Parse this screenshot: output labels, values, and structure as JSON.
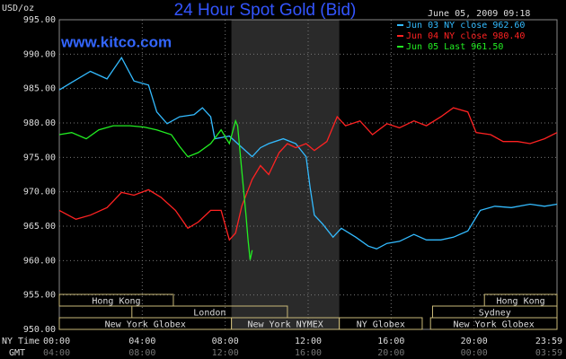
{
  "chart_data": {
    "type": "line",
    "title": "24 Hour Spot Gold (Bid)",
    "y_label": "USD/oz",
    "timestamp": "June 05, 2009 09:18",
    "watermark": "www.kitco.com",
    "x_row_label": "NY Time",
    "gmt_row_label": "GMT",
    "xlim": [
      0,
      24
    ],
    "xticks": [
      {
        "value": 0,
        "label": "00:00"
      },
      {
        "value": 4,
        "label": "04:00"
      },
      {
        "value": 8,
        "label": "08:00"
      },
      {
        "value": 12,
        "label": "12:00"
      },
      {
        "value": 16,
        "label": "16:00"
      },
      {
        "value": 20,
        "label": "20:00"
      },
      {
        "value": 24,
        "label": "23:59"
      }
    ],
    "gmt_labels": [
      "04:00",
      "08:00",
      "12:00",
      "16:00",
      "20:00",
      "00:00",
      "03:59"
    ],
    "ylim": [
      950,
      995
    ],
    "yticks": [
      {
        "value": 950,
        "label": "950.00"
      },
      {
        "value": 955,
        "label": "955.00"
      },
      {
        "value": 960,
        "label": "960.00"
      },
      {
        "value": 965,
        "label": "965.00"
      },
      {
        "value": 970,
        "label": "970.00"
      },
      {
        "value": 975,
        "label": "975.00"
      },
      {
        "value": 980,
        "label": "980.00"
      },
      {
        "value": 985,
        "label": "985.00"
      },
      {
        "value": 990,
        "label": "990.00"
      },
      {
        "value": 995,
        "label": "995.00"
      }
    ],
    "grid": true,
    "series": [
      {
        "name": "Jun 03 NY close 962.60",
        "color": "#33bbff",
        "x": [
          0,
          0.6,
          1.5,
          2.3,
          3.0,
          3.6,
          4.3,
          4.7,
          5.2,
          5.8,
          6.5,
          6.9,
          7.3,
          7.5,
          8.2,
          8.6,
          9.3,
          9.7,
          10.1,
          10.8,
          11.4,
          11.9,
          12.1,
          12.3,
          12.7,
          13.2,
          13.6,
          14.3,
          14.9,
          15.3,
          15.8,
          16.4,
          17.1,
          17.7,
          18.4,
          19.0,
          19.7,
          20.3,
          21.0,
          21.8,
          22.7,
          23.4,
          24.0
        ],
        "values": [
          984.8,
          985.9,
          987.5,
          986.4,
          989.5,
          986.1,
          985.5,
          981.6,
          979.9,
          980.9,
          981.2,
          982.2,
          980.9,
          977.7,
          978.1,
          977.0,
          975.1,
          976.4,
          977.0,
          977.7,
          977.0,
          975.1,
          970.5,
          966.6,
          965.3,
          963.4,
          964.7,
          963.4,
          962.1,
          961.7,
          962.5,
          962.8,
          963.8,
          963.0,
          963.0,
          963.4,
          964.3,
          967.3,
          967.9,
          967.7,
          968.2,
          967.9,
          968.2
        ]
      },
      {
        "name": "Jun 04 NY close 980.40",
        "color": "#ff2222",
        "x": [
          0,
          0.8,
          1.5,
          2.3,
          3.0,
          3.6,
          4.3,
          4.9,
          5.6,
          6.2,
          6.7,
          7.3,
          7.8,
          8.2,
          8.5,
          8.8,
          9.3,
          9.7,
          10.1,
          10.6,
          11.0,
          11.4,
          11.9,
          12.3,
          12.9,
          13.4,
          13.8,
          14.5,
          15.1,
          15.8,
          16.4,
          17.1,
          17.7,
          18.4,
          19.0,
          19.7,
          20.1,
          20.8,
          21.4,
          22.1,
          22.7,
          23.4,
          24.0
        ],
        "values": [
          967.3,
          966.0,
          966.6,
          967.7,
          969.9,
          969.5,
          970.3,
          969.2,
          967.3,
          964.7,
          965.6,
          967.3,
          967.3,
          963.0,
          964.0,
          967.9,
          971.8,
          973.8,
          972.5,
          975.7,
          977.0,
          976.4,
          977.0,
          976.0,
          977.3,
          980.9,
          979.6,
          980.3,
          978.3,
          979.9,
          979.3,
          980.3,
          979.6,
          980.9,
          982.2,
          981.6,
          978.6,
          978.3,
          977.3,
          977.3,
          977.0,
          977.7,
          978.6
        ]
      },
      {
        "name": "Jun 05 Last 961.50",
        "color": "#22ee22",
        "x": [
          0,
          0.6,
          1.3,
          1.9,
          2.6,
          3.4,
          4.1,
          4.7,
          5.4,
          5.8,
          6.2,
          6.7,
          7.3,
          7.8,
          8.2,
          8.5,
          8.6,
          8.8,
          9.0,
          9.1,
          9.2,
          9.3
        ],
        "values": [
          978.3,
          978.6,
          977.7,
          979.0,
          979.6,
          979.6,
          979.4,
          979.0,
          978.3,
          976.6,
          975.1,
          975.7,
          977.0,
          979.0,
          977.0,
          980.3,
          979.6,
          973.1,
          966.6,
          963.0,
          960.1,
          961.5
        ]
      }
    ],
    "session_rows": [
      [
        {
          "label": "Hong Kong",
          "start": 0,
          "end": 5.5
        },
        {
          "label": "Hong Kong",
          "start": 20.5,
          "end": 24
        }
      ],
      [
        {
          "label": "London",
          "start": 3.5,
          "end": 11
        },
        {
          "label": "Sydney",
          "start": 18,
          "end": 24
        }
      ],
      [
        {
          "label": "New York Globex",
          "start": 0,
          "end": 8.3
        },
        {
          "label": "New York NYMEX",
          "start": 8.3,
          "end": 13.5,
          "shaded": true
        },
        {
          "label": "NY Globex",
          "start": 13.5,
          "end": 17.5
        },
        {
          "label": "New York Globex",
          "start": 17.9,
          "end": 24
        }
      ]
    ]
  }
}
